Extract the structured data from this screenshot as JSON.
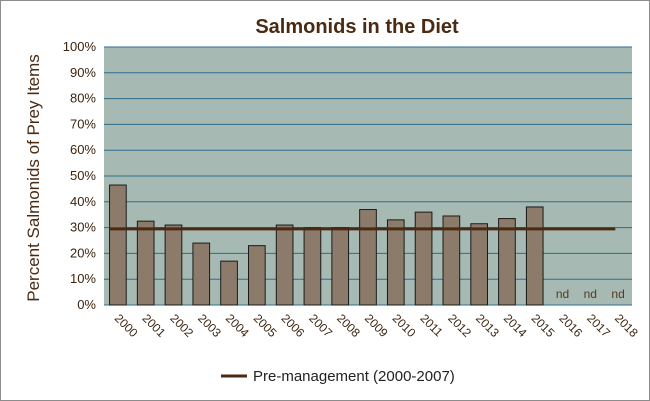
{
  "chart_data": {
    "type": "bar",
    "title": "Salmonids in the Diet",
    "ylabel": "Percent Salmonids of Prey Items",
    "xlabel": "",
    "ylim": [
      0,
      100
    ],
    "y_ticks": [
      "0%",
      "10%",
      "20%",
      "30%",
      "40%",
      "50%",
      "60%",
      "70%",
      "80%",
      "90%",
      "100%"
    ],
    "categories": [
      "2000",
      "2001",
      "2002",
      "2003",
      "2004",
      "2005",
      "2006",
      "2007",
      "2008",
      "2009",
      "2010",
      "2011",
      "2012",
      "2013",
      "2014",
      "2015",
      "2016",
      "2017",
      "2018"
    ],
    "values": [
      46.5,
      32.5,
      31,
      24,
      17,
      23,
      31,
      30,
      30,
      37,
      33,
      36,
      34.5,
      31.5,
      33.5,
      38,
      null,
      null,
      null
    ],
    "no_data_label": "nd",
    "reference_line": {
      "name": "Pre-management (2000-2007)",
      "value": 29.5
    },
    "legend_position": "bottom",
    "grid": true,
    "colors": {
      "plot_background": "#a6b9b2",
      "bar_fill": "#8c7b6b",
      "bar_stroke": "#1a1a1a",
      "gridline": "#2e6f8e",
      "reference_line": "#4a2a12",
      "title_color": "#4a2a12"
    }
  }
}
